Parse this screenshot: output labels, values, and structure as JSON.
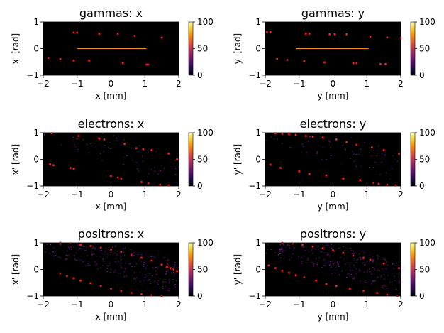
{
  "figure": {
    "colormap": [
      "#000004",
      "#1b0c41",
      "#4a0c6b",
      "#781c6d",
      "#a52c60",
      "#cf4446",
      "#ed6925",
      "#fb9b06",
      "#f7d13d",
      "#fcffa4"
    ],
    "marker_color": "#ff2020",
    "axes_background": "#000000"
  },
  "chart_data": [
    {
      "type": "heatmap",
      "name": "gammas-x",
      "title": "gammas: x",
      "xlabel": "x [mm]",
      "ylabel": "x' [rad]",
      "xlim": [
        -2,
        2
      ],
      "ylim": [
        -1,
        1
      ],
      "xticks": [
        "−2",
        "−1",
        "0",
        "1",
        "2"
      ],
      "yticks": [
        "−1",
        "0",
        "1"
      ],
      "colorbar": {
        "range": [
          0,
          100
        ],
        "ticks": [
          "0",
          "50",
          "100"
        ]
      },
      "core": {
        "type": "line",
        "x": [
          -1.0,
          1.05
        ],
        "y": [
          0.0,
          0.0
        ]
      },
      "markers": [
        [
          -1.1,
          0.6
        ],
        [
          -1.0,
          0.6
        ],
        [
          -0.35,
          0.56
        ],
        [
          0.2,
          0.56
        ],
        [
          0.7,
          0.48
        ],
        [
          1.5,
          0.41
        ],
        [
          -1.85,
          -0.35
        ],
        [
          -1.5,
          -0.39
        ],
        [
          -1.1,
          -0.45
        ],
        [
          -0.65,
          -0.45
        ],
        [
          0.35,
          -0.55
        ],
        [
          1.05,
          -0.6
        ],
        [
          1.1,
          -0.6
        ]
      ],
      "noise": 0
    },
    {
      "type": "heatmap",
      "name": "gammas-y",
      "title": "gammas: y",
      "xlabel": "y [mm]",
      "ylabel": "y' [rad]",
      "xlim": [
        -2,
        2
      ],
      "ylim": [
        -1,
        1
      ],
      "xticks": [
        "−2",
        "−1",
        "0",
        "1",
        "2"
      ],
      "yticks": [
        "−1",
        "0",
        "1"
      ],
      "colorbar": {
        "range": [
          0,
          100
        ],
        "ticks": [
          "0",
          "50",
          "100"
        ]
      },
      "core": {
        "type": "line",
        "x": [
          -1.1,
          1.05
        ],
        "y": [
          0.0,
          0.0
        ]
      },
      "markers": [
        [
          -1.95,
          0.62
        ],
        [
          -1.85,
          0.62
        ],
        [
          -0.8,
          0.56
        ],
        [
          -0.7,
          0.56
        ],
        [
          -0.1,
          0.54
        ],
        [
          0.05,
          0.54
        ],
        [
          0.4,
          0.54
        ],
        [
          1.1,
          0.45
        ],
        [
          1.6,
          0.42
        ],
        [
          2.0,
          0.4
        ],
        [
          -1.65,
          -0.38
        ],
        [
          -1.35,
          -0.43
        ],
        [
          -0.85,
          -0.47
        ],
        [
          -0.25,
          -0.52
        ],
        [
          0.6,
          -0.55
        ],
        [
          0.7,
          -0.55
        ],
        [
          1.4,
          -0.58
        ],
        [
          1.55,
          -0.58
        ]
      ],
      "noise": 0
    },
    {
      "type": "heatmap",
      "name": "electrons-x",
      "title": "electrons: x",
      "xlabel": "x [mm]",
      "ylabel": "x' [rad]",
      "xlim": [
        -2,
        2
      ],
      "ylim": [
        -1,
        1
      ],
      "xticks": [
        "−2",
        "−1",
        "0",
        "1",
        "2"
      ],
      "yticks": [
        "−1",
        "0",
        "1"
      ],
      "colorbar": {
        "range": [
          0,
          100
        ],
        "ticks": [
          "0",
          "50",
          "100"
        ]
      },
      "core": null,
      "markers": [
        [
          -1.75,
          0.98
        ],
        [
          -0.95,
          0.88
        ],
        [
          -0.35,
          0.78
        ],
        [
          -0.2,
          0.75
        ],
        [
          0.4,
          0.58
        ],
        [
          0.75,
          0.42
        ],
        [
          0.95,
          0.38
        ],
        [
          1.2,
          0.35
        ],
        [
          1.7,
          0.22
        ],
        [
          1.95,
          0.0
        ],
        [
          -1.8,
          -0.18
        ],
        [
          -1.7,
          -0.22
        ],
        [
          -1.2,
          -0.32
        ],
        [
          -1.1,
          -0.35
        ],
        [
          0.0,
          -0.62
        ],
        [
          0.2,
          -0.68
        ],
        [
          0.3,
          -0.72
        ],
        [
          0.9,
          -0.85
        ],
        [
          1.1,
          -0.9
        ],
        [
          1.45,
          -0.95
        ],
        [
          1.7,
          -0.98
        ]
      ],
      "noise": 70
    },
    {
      "type": "heatmap",
      "name": "electrons-y",
      "title": "electrons: y",
      "xlabel": "y [mm]",
      "ylabel": "y' [rad]",
      "xlim": [
        -2,
        2
      ],
      "ylim": [
        -1,
        1
      ],
      "xticks": [
        "−2",
        "−1",
        "0",
        "1",
        "2"
      ],
      "yticks": [
        "−1",
        "0",
        "1"
      ],
      "colorbar": {
        "range": [
          0,
          100
        ],
        "ticks": [
          "0",
          "50",
          "100"
        ]
      },
      "core": null,
      "markers": [
        [
          -1.7,
          0.98
        ],
        [
          -1.5,
          0.96
        ],
        [
          -1.3,
          0.94
        ],
        [
          -1.1,
          0.92
        ],
        [
          -0.8,
          0.88
        ],
        [
          -0.6,
          0.85
        ],
        [
          -0.3,
          0.82
        ],
        [
          0.1,
          0.75
        ],
        [
          0.4,
          0.65
        ],
        [
          0.7,
          0.55
        ],
        [
          1.15,
          0.45
        ],
        [
          1.5,
          0.35
        ],
        [
          1.95,
          0.2
        ],
        [
          -1.85,
          -0.2
        ],
        [
          -1.55,
          -0.32
        ],
        [
          -1.0,
          -0.45
        ],
        [
          -0.7,
          -0.55
        ],
        [
          -0.2,
          -0.6
        ],
        [
          0.3,
          -0.72
        ],
        [
          0.8,
          -0.78
        ],
        [
          1.2,
          -0.88
        ],
        [
          1.35,
          -0.92
        ],
        [
          1.6,
          -0.95
        ],
        [
          1.85,
          -0.98
        ]
      ],
      "noise": 70
    },
    {
      "type": "heatmap",
      "name": "positrons-x",
      "title": "positrons: x",
      "xlabel": "x [mm]",
      "ylabel": "x' [rad]",
      "xlim": [
        -2,
        2
      ],
      "ylim": [
        -1,
        1
      ],
      "xticks": [
        "−2",
        "−1",
        "0",
        "1",
        "2"
      ],
      "yticks": [
        "−1",
        "0",
        "1"
      ],
      "colorbar": {
        "range": [
          0,
          100
        ],
        "ticks": [
          "0",
          "50",
          "100"
        ]
      },
      "core": null,
      "markers": [
        [
          -1.5,
          1.0
        ],
        [
          -1.2,
          0.98
        ],
        [
          -0.9,
          0.93
        ],
        [
          -0.6,
          0.88
        ],
        [
          -0.3,
          0.82
        ],
        [
          0.0,
          0.75
        ],
        [
          0.3,
          0.66
        ],
        [
          0.6,
          0.55
        ],
        [
          0.9,
          0.44
        ],
        [
          1.2,
          0.33
        ],
        [
          1.5,
          0.18
        ],
        [
          1.65,
          0.1
        ],
        [
          1.75,
          0.05
        ],
        [
          1.85,
          0.0
        ],
        [
          1.95,
          -0.06
        ],
        [
          -1.5,
          -0.15
        ],
        [
          -1.3,
          -0.25
        ],
        [
          -1.1,
          -0.33
        ],
        [
          -0.9,
          -0.42
        ],
        [
          -0.6,
          -0.52
        ],
        [
          -0.3,
          -0.62
        ],
        [
          0.0,
          -0.72
        ],
        [
          0.3,
          -0.8
        ],
        [
          0.6,
          -0.88
        ],
        [
          0.9,
          -0.93
        ],
        [
          1.2,
          -0.97
        ],
        [
          1.5,
          -1.0
        ]
      ],
      "noise": 260
    },
    {
      "type": "heatmap",
      "name": "positrons-y",
      "title": "positrons: y",
      "xlabel": "y [mm]",
      "ylabel": "y' [rad]",
      "xlim": [
        -2,
        2
      ],
      "ylim": [
        -1,
        1
      ],
      "xticks": [
        "−2",
        "−1",
        "0",
        "1",
        "2"
      ],
      "yticks": [
        "−1",
        "0",
        "1"
      ],
      "colorbar": {
        "range": [
          0,
          100
        ],
        "ticks": [
          "0",
          "50",
          "100"
        ]
      },
      "core": null,
      "markers": [
        [
          -1.5,
          1.0
        ],
        [
          -1.2,
          0.97
        ],
        [
          -0.9,
          0.92
        ],
        [
          -0.6,
          0.86
        ],
        [
          -0.3,
          0.8
        ],
        [
          0.0,
          0.72
        ],
        [
          0.3,
          0.62
        ],
        [
          0.6,
          0.52
        ],
        [
          0.9,
          0.43
        ],
        [
          1.1,
          0.36
        ],
        [
          1.5,
          0.22
        ],
        [
          1.95,
          0.05
        ],
        [
          -1.9,
          0.15
        ],
        [
          -1.7,
          0.05
        ],
        [
          -1.5,
          -0.05
        ],
        [
          -1.3,
          -0.12
        ],
        [
          -1.1,
          -0.22
        ],
        [
          -0.85,
          -0.3
        ],
        [
          -0.5,
          -0.42
        ],
        [
          -0.2,
          -0.55
        ],
        [
          0.1,
          -0.62
        ],
        [
          0.5,
          -0.72
        ],
        [
          0.9,
          -0.8
        ],
        [
          1.3,
          -0.88
        ],
        [
          1.6,
          -0.95
        ],
        [
          1.9,
          -1.0
        ]
      ],
      "noise": 260
    }
  ]
}
